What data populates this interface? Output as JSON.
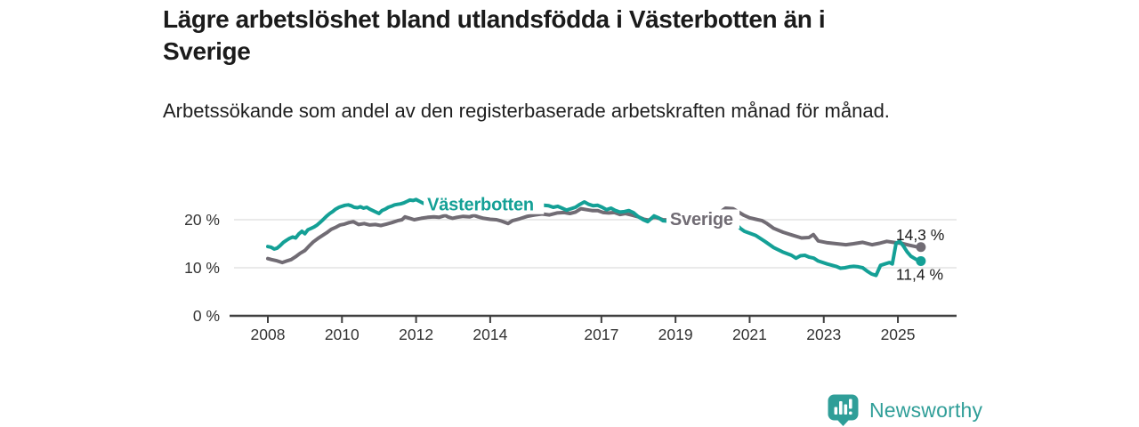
{
  "header": {
    "title_lines": [
      "Lägre arbetslöshet bland utlandsfödda i Västerbotten än i",
      "Sverige"
    ],
    "subtitle": "Arbetssökande som andel av den registerbaserade arbetskraften månad för månad."
  },
  "footer": {
    "brand": "Newsworthy",
    "logo_icon": "bar-chart-speech-bubble"
  },
  "colors": {
    "vasterbotten": "#14a096",
    "sverige": "#716c74",
    "grid": "#dddddd",
    "axis": "#3f3f3f",
    "text": "#333333",
    "annotation": "#1a1a1a",
    "brand_teal": "#2f9e98"
  },
  "chart_data": {
    "type": "line",
    "title": "Lägre arbetslöshet bland utlandsfödda i Västerbotten än i Sverige",
    "subtitle": "Arbetssökande som andel av den registerbaserade arbetskraften månad för månad.",
    "xlabel": "",
    "ylabel": "",
    "unit": "%",
    "grid": true,
    "x_axis": {
      "ticks": [
        2008,
        2010,
        2012,
        2014,
        2017,
        2019,
        2021,
        2023,
        2025
      ],
      "range": [
        2008,
        2026.6
      ]
    },
    "y_axis": {
      "ticks": [
        0,
        10,
        20
      ],
      "tick_suffix": " %",
      "range": [
        0,
        24.5
      ]
    },
    "series": [
      {
        "name": "Sverige",
        "color": "#716c74",
        "end_value": 14.3,
        "end_label": "14,3 %",
        "annotation_offset": [
          -28,
          -8
        ],
        "label_anchor": {
          "year": 2018.85,
          "value": 18.9
        },
        "points": [
          [
            2008.0,
            11.9
          ],
          [
            2008.1,
            11.7
          ],
          [
            2008.22,
            11.5
          ],
          [
            2008.39,
            11.1
          ],
          [
            2008.51,
            11.4
          ],
          [
            2008.63,
            11.7
          ],
          [
            2008.75,
            12.3
          ],
          [
            2008.87,
            13.0
          ],
          [
            2009.0,
            13.6
          ],
          [
            2009.11,
            14.5
          ],
          [
            2009.23,
            15.4
          ],
          [
            2009.35,
            16.1
          ],
          [
            2009.47,
            16.7
          ],
          [
            2009.59,
            17.3
          ],
          [
            2009.71,
            18.0
          ],
          [
            2009.83,
            18.4
          ],
          [
            2009.95,
            18.9
          ],
          [
            2010.07,
            19.1
          ],
          [
            2010.19,
            19.4
          ],
          [
            2010.31,
            19.6
          ],
          [
            2010.45,
            19.0
          ],
          [
            2010.6,
            19.2
          ],
          [
            2010.75,
            18.9
          ],
          [
            2010.9,
            19.0
          ],
          [
            2011.05,
            18.8
          ],
          [
            2011.2,
            19.1
          ],
          [
            2011.35,
            19.4
          ],
          [
            2011.5,
            19.8
          ],
          [
            2011.62,
            20.0
          ],
          [
            2011.7,
            20.6
          ],
          [
            2011.83,
            20.3
          ],
          [
            2011.95,
            20.0
          ],
          [
            2012.14,
            20.3
          ],
          [
            2012.31,
            20.5
          ],
          [
            2012.48,
            20.6
          ],
          [
            2012.62,
            20.5
          ],
          [
            2012.79,
            20.9
          ],
          [
            2012.86,
            20.6
          ],
          [
            2012.98,
            20.3
          ],
          [
            2013.1,
            20.5
          ],
          [
            2013.27,
            20.7
          ],
          [
            2013.44,
            20.6
          ],
          [
            2013.56,
            20.9
          ],
          [
            2013.68,
            20.6
          ],
          [
            2013.82,
            20.3
          ],
          [
            2014.0,
            20.1
          ],
          [
            2014.17,
            20.0
          ],
          [
            2014.31,
            19.7
          ],
          [
            2014.48,
            19.2
          ],
          [
            2014.6,
            19.8
          ],
          [
            2014.8,
            20.2
          ],
          [
            2015.0,
            20.7
          ],
          [
            2015.2,
            21.0
          ],
          [
            2015.4,
            21.2
          ],
          [
            2015.6,
            21.0
          ],
          [
            2015.8,
            21.4
          ],
          [
            2016.0,
            21.5
          ],
          [
            2016.15,
            21.3
          ],
          [
            2016.3,
            21.6
          ],
          [
            2016.45,
            22.3
          ],
          [
            2016.6,
            22.1
          ],
          [
            2016.75,
            21.9
          ],
          [
            2016.9,
            21.9
          ],
          [
            2017.05,
            21.5
          ],
          [
            2017.2,
            21.4
          ],
          [
            2017.35,
            21.5
          ],
          [
            2017.5,
            21.1
          ],
          [
            2017.65,
            21.3
          ],
          [
            2017.8,
            21.0
          ],
          [
            2018.0,
            20.6
          ],
          [
            2018.15,
            20.1
          ],
          [
            2018.28,
            19.9
          ],
          [
            2018.42,
            20.6
          ],
          [
            2018.55,
            20.3
          ],
          [
            2018.66,
            20.0
          ],
          [
            2019.0,
            19.9
          ],
          [
            2019.3,
            19.7
          ],
          [
            2019.6,
            19.6
          ],
          [
            2019.9,
            19.8
          ],
          [
            2020.1,
            21.0
          ],
          [
            2020.35,
            22.4
          ],
          [
            2020.55,
            22.3
          ],
          [
            2020.7,
            21.6
          ],
          [
            2020.85,
            20.9
          ],
          [
            2021.0,
            20.4
          ],
          [
            2021.17,
            20.1
          ],
          [
            2021.34,
            19.8
          ],
          [
            2021.45,
            19.3
          ],
          [
            2021.65,
            18.2
          ],
          [
            2021.9,
            17.4
          ],
          [
            2022.15,
            16.8
          ],
          [
            2022.4,
            16.2
          ],
          [
            2022.6,
            16.3
          ],
          [
            2022.72,
            16.9
          ],
          [
            2022.85,
            15.6
          ],
          [
            2023.1,
            15.2
          ],
          [
            2023.35,
            15.0
          ],
          [
            2023.6,
            14.8
          ],
          [
            2023.8,
            15.0
          ],
          [
            2024.05,
            15.3
          ],
          [
            2024.3,
            14.8
          ],
          [
            2024.5,
            15.1
          ],
          [
            2024.7,
            15.5
          ],
          [
            2024.95,
            15.2
          ],
          [
            2025.1,
            15.1
          ],
          [
            2025.3,
            14.7
          ],
          [
            2025.48,
            14.4
          ],
          [
            2025.62,
            14.3
          ]
        ]
      },
      {
        "name": "Västerbotten",
        "color": "#14a096",
        "end_value": 11.4,
        "end_label": "11,4 %",
        "annotation_offset": [
          -28,
          21
        ],
        "label_anchor": {
          "year": 2012.3,
          "value": 21.9
        },
        "points": [
          [
            2008.0,
            14.4
          ],
          [
            2008.08,
            14.3
          ],
          [
            2008.17,
            13.9
          ],
          [
            2008.25,
            14.1
          ],
          [
            2008.33,
            14.6
          ],
          [
            2008.42,
            15.3
          ],
          [
            2008.5,
            15.7
          ],
          [
            2008.58,
            16.1
          ],
          [
            2008.67,
            16.4
          ],
          [
            2008.75,
            16.2
          ],
          [
            2008.83,
            17.0
          ],
          [
            2008.92,
            17.6
          ],
          [
            2009.0,
            17.1
          ],
          [
            2009.08,
            17.9
          ],
          [
            2009.17,
            18.2
          ],
          [
            2009.25,
            18.5
          ],
          [
            2009.33,
            18.9
          ],
          [
            2009.42,
            19.5
          ],
          [
            2009.5,
            20.1
          ],
          [
            2009.58,
            20.7
          ],
          [
            2009.67,
            21.3
          ],
          [
            2009.75,
            21.7
          ],
          [
            2009.83,
            22.2
          ],
          [
            2009.92,
            22.6
          ],
          [
            2010.0,
            22.8
          ],
          [
            2010.08,
            23.0
          ],
          [
            2010.17,
            23.1
          ],
          [
            2010.25,
            22.9
          ],
          [
            2010.33,
            22.6
          ],
          [
            2010.42,
            22.5
          ],
          [
            2010.5,
            22.7
          ],
          [
            2010.58,
            22.4
          ],
          [
            2010.67,
            22.6
          ],
          [
            2010.75,
            22.2
          ],
          [
            2010.83,
            21.9
          ],
          [
            2010.92,
            21.6
          ],
          [
            2011.0,
            21.3
          ],
          [
            2011.08,
            21.9
          ],
          [
            2011.17,
            22.2
          ],
          [
            2011.25,
            22.6
          ],
          [
            2011.33,
            22.8
          ],
          [
            2011.42,
            23.1
          ],
          [
            2011.5,
            23.2
          ],
          [
            2011.58,
            23.3
          ],
          [
            2011.67,
            23.5
          ],
          [
            2011.75,
            23.8
          ],
          [
            2011.83,
            24.1
          ],
          [
            2011.92,
            24.0
          ],
          [
            2012.0,
            24.2
          ],
          [
            2012.1,
            23.8
          ],
          [
            2012.2,
            23.4
          ],
          [
            2012.5,
            23.2
          ],
          [
            2012.8,
            22.9
          ],
          [
            2013.1,
            22.7
          ],
          [
            2013.4,
            23.0
          ],
          [
            2013.7,
            22.8
          ],
          [
            2014.0,
            22.6
          ],
          [
            2014.3,
            22.8
          ],
          [
            2014.6,
            22.7
          ],
          [
            2014.9,
            22.9
          ],
          [
            2015.2,
            22.8
          ],
          [
            2015.45,
            23.0
          ],
          [
            2015.58,
            22.9
          ],
          [
            2015.7,
            22.6
          ],
          [
            2015.82,
            22.8
          ],
          [
            2015.94,
            22.4
          ],
          [
            2016.06,
            22.0
          ],
          [
            2016.18,
            22.3
          ],
          [
            2016.3,
            22.6
          ],
          [
            2016.42,
            23.2
          ],
          [
            2016.54,
            23.7
          ],
          [
            2016.66,
            23.2
          ],
          [
            2016.78,
            22.9
          ],
          [
            2016.9,
            23.0
          ],
          [
            2017.02,
            22.6
          ],
          [
            2017.14,
            22.1
          ],
          [
            2017.26,
            22.4
          ],
          [
            2017.38,
            21.9
          ],
          [
            2017.5,
            21.6
          ],
          [
            2017.62,
            21.7
          ],
          [
            2017.74,
            21.9
          ],
          [
            2017.86,
            21.5
          ],
          [
            2017.98,
            20.7
          ],
          [
            2018.13,
            20.0
          ],
          [
            2018.25,
            19.6
          ],
          [
            2018.42,
            20.8
          ],
          [
            2018.54,
            20.4
          ],
          [
            2018.66,
            19.8
          ],
          [
            2019.0,
            19.6
          ],
          [
            2019.3,
            19.2
          ],
          [
            2019.6,
            18.9
          ],
          [
            2019.9,
            18.7
          ],
          [
            2020.15,
            20.2
          ],
          [
            2020.4,
            20.7
          ],
          [
            2020.6,
            19.3
          ],
          [
            2020.75,
            18.2
          ],
          [
            2020.86,
            17.6
          ],
          [
            2021.0,
            17.2
          ],
          [
            2021.17,
            16.7
          ],
          [
            2021.41,
            15.5
          ],
          [
            2021.65,
            14.2
          ],
          [
            2021.89,
            13.3
          ],
          [
            2022.13,
            12.6
          ],
          [
            2022.25,
            12.0
          ],
          [
            2022.37,
            12.5
          ],
          [
            2022.49,
            12.6
          ],
          [
            2022.61,
            12.2
          ],
          [
            2022.73,
            12.0
          ],
          [
            2022.85,
            11.4
          ],
          [
            2023.09,
            10.8
          ],
          [
            2023.33,
            10.3
          ],
          [
            2023.45,
            9.9
          ],
          [
            2023.57,
            10.0
          ],
          [
            2023.69,
            10.2
          ],
          [
            2023.81,
            10.3
          ],
          [
            2023.93,
            10.2
          ],
          [
            2024.05,
            10.0
          ],
          [
            2024.17,
            9.3
          ],
          [
            2024.29,
            8.7
          ],
          [
            2024.41,
            8.4
          ],
          [
            2024.53,
            10.5
          ],
          [
            2024.65,
            10.8
          ],
          [
            2024.77,
            11.1
          ],
          [
            2024.85,
            10.8
          ],
          [
            2024.95,
            15.1
          ],
          [
            2025.05,
            15.5
          ],
          [
            2025.15,
            14.5
          ],
          [
            2025.25,
            13.3
          ],
          [
            2025.35,
            12.4
          ],
          [
            2025.5,
            11.7
          ],
          [
            2025.62,
            11.4
          ]
        ]
      }
    ]
  }
}
